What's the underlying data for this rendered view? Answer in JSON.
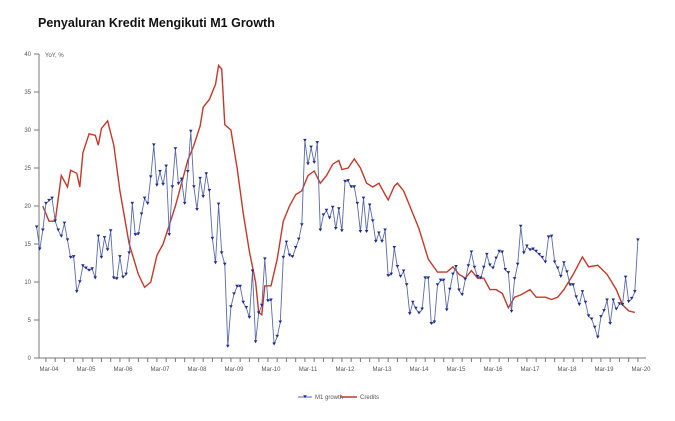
{
  "chart_data": {
    "type": "line",
    "title": "Penyaluran Kredit Mengikuti M1 Growth",
    "ylabel": "YoY, %",
    "xlabel": "",
    "ylim": [
      0,
      40
    ],
    "yticks": [
      0,
      5,
      10,
      15,
      20,
      25,
      30,
      35,
      40
    ],
    "xticks": [
      "Mar-04",
      "Mar-05",
      "Mar-06",
      "Mar-07",
      "Mar-08",
      "Mar-09",
      "Mar-10",
      "Mar-11",
      "Mar-12",
      "Mar-13",
      "Mar-14",
      "Mar-15",
      "Mar-16",
      "Mar-17",
      "Mar-18",
      "Mar-19",
      "Mar-20"
    ],
    "grid": false,
    "legend": "bottom",
    "series": [
      {
        "name": "M1 growth",
        "color": "#1f2a8c",
        "marker": "triangle-down",
        "x": [
          "2003-11",
          "2003-12",
          "2004-01",
          "2004-02",
          "2004-03",
          "2004-04",
          "2004-05",
          "2004-06",
          "2004-07",
          "2004-08",
          "2004-09",
          "2004-10",
          "2004-11",
          "2004-12",
          "2005-01",
          "2005-02",
          "2005-03",
          "2005-04",
          "2005-05",
          "2005-06",
          "2005-07",
          "2005-08",
          "2005-09",
          "2005-10",
          "2005-11",
          "2005-12",
          "2006-01",
          "2006-02",
          "2006-03",
          "2006-04",
          "2006-05",
          "2006-06",
          "2006-07",
          "2006-08",
          "2006-09",
          "2006-10",
          "2006-11",
          "2006-12",
          "2007-01",
          "2007-02",
          "2007-03",
          "2007-04",
          "2007-05",
          "2007-06",
          "2007-07",
          "2007-08",
          "2007-09",
          "2007-10",
          "2007-11",
          "2007-12",
          "2008-01",
          "2008-02",
          "2008-03",
          "2008-04",
          "2008-05",
          "2008-06",
          "2008-07",
          "2008-08",
          "2008-09",
          "2008-10",
          "2008-11",
          "2008-12",
          "2009-01",
          "2009-02",
          "2009-03",
          "2009-04",
          "2009-05",
          "2009-06",
          "2009-07",
          "2009-08",
          "2009-09",
          "2009-10",
          "2009-11",
          "2009-12",
          "2010-01",
          "2010-02",
          "2010-03",
          "2010-04",
          "2010-05",
          "2010-06",
          "2010-07",
          "2010-08",
          "2010-09",
          "2010-10",
          "2010-11",
          "2010-12",
          "2011-01",
          "2011-02",
          "2011-03",
          "2011-04",
          "2011-05",
          "2011-06",
          "2011-07",
          "2011-08",
          "2011-09",
          "2011-10",
          "2011-11",
          "2011-12",
          "2012-01",
          "2012-02",
          "2012-03",
          "2012-04",
          "2012-05",
          "2012-06",
          "2012-07",
          "2012-08",
          "2012-09",
          "2012-10",
          "2012-11",
          "2012-12",
          "2013-01",
          "2013-02",
          "2013-03",
          "2013-04",
          "2013-05",
          "2013-06",
          "2013-07",
          "2013-08",
          "2013-09",
          "2013-10",
          "2013-11",
          "2013-12",
          "2014-01",
          "2014-02",
          "2014-03",
          "2014-04",
          "2014-05",
          "2014-06",
          "2014-07",
          "2014-08",
          "2014-09",
          "2014-10",
          "2014-11",
          "2014-12",
          "2015-01",
          "2015-02",
          "2015-03",
          "2015-04",
          "2015-05",
          "2015-06",
          "2015-07",
          "2015-08",
          "2015-09",
          "2015-10",
          "2015-11",
          "2015-12",
          "2016-01",
          "2016-02",
          "2016-03",
          "2016-04",
          "2016-05",
          "2016-06",
          "2016-07",
          "2016-08",
          "2016-09",
          "2016-10",
          "2016-11",
          "2016-12",
          "2017-01",
          "2017-02",
          "2017-03",
          "2017-04",
          "2017-05",
          "2017-06",
          "2017-07",
          "2017-08",
          "2017-09",
          "2017-10",
          "2017-11",
          "2017-12",
          "2018-01",
          "2018-02",
          "2018-03",
          "2018-04",
          "2018-05",
          "2018-06",
          "2018-07",
          "2018-08",
          "2018-09",
          "2018-10",
          "2018-11",
          "2018-12",
          "2019-01",
          "2019-02",
          "2019-03",
          "2019-04",
          "2019-05",
          "2019-06",
          "2019-07",
          "2019-08",
          "2019-09",
          "2019-10",
          "2019-11",
          "2019-12",
          "2020-01",
          "2020-02"
        ],
        "values": [
          17.2,
          14.3,
          16.8,
          20.3,
          20.7,
          21,
          18,
          16.8,
          16,
          17.7,
          15.5,
          13.2,
          13.3,
          8.7,
          10,
          12.1,
          11.8,
          11.5,
          11.7,
          10.5,
          16,
          13.2,
          15.8,
          14.2,
          16.7,
          10.5,
          10.4,
          13.3,
          10.6,
          11,
          13.8,
          20.3,
          16.2,
          16.3,
          18.9,
          21,
          20.3,
          23.8,
          28,
          22.7,
          24.5,
          22.8,
          25.2,
          16.2,
          22.5,
          27.5,
          22.9,
          23.5,
          20.3,
          24.5,
          29.8,
          22.5,
          19.5,
          23.6,
          21.2,
          24.2,
          22,
          15.7,
          12.5,
          20.2,
          13.8,
          12.3,
          1.5,
          6.7,
          8.4,
          9.4,
          9.4,
          7.3,
          6.6,
          5.3,
          11.4,
          2.1,
          5.9,
          6.9,
          13,
          7.5,
          7.6,
          1.8,
          2.8,
          4.7,
          13.2,
          15.2,
          13.5,
          13.3,
          14.5,
          15.6,
          17.5,
          28.6,
          25.5,
          27.7,
          25.7,
          28.3,
          16.8,
          18.8,
          19.4,
          18.4,
          19.8,
          17,
          19.6,
          16.7,
          23.2,
          23.3,
          22.5,
          22.5,
          20.3,
          16.6,
          21,
          16.6,
          20.1,
          18,
          15.3,
          16.4,
          15.3,
          16.8,
          10.8,
          11,
          14.5,
          12,
          10.7,
          11.4,
          9.6,
          5.8,
          7.3,
          6.5,
          5.9,
          6.4,
          10.5,
          10.5,
          4.5,
          4.7,
          9.6,
          10.2,
          10.2,
          6.3,
          9,
          11,
          12,
          8.9,
          8.3,
          10.3,
          12.1,
          13.9,
          11.9,
          10.7,
          10.5,
          11.9,
          13.6,
          12.2,
          11.8,
          13.1,
          14,
          13.9,
          11.6,
          11.2,
          6.1,
          10.4,
          12.3,
          17.3,
          13.8,
          14.7,
          14.2,
          14.3,
          14,
          13.6,
          13.2,
          12.6,
          15.9,
          16,
          12.6,
          11.8,
          10.7,
          12.5,
          11.3,
          9.6,
          9.6,
          8,
          7,
          8.7,
          7.3,
          5.5,
          5.1,
          4,
          2.7,
          5.4,
          6.2,
          7.6,
          4.5,
          7.6,
          6.4,
          7.1,
          7,
          10.6,
          7.4,
          7.8,
          8.7,
          15.5
        ]
      },
      {
        "name": "Credits",
        "color": "#c0392b",
        "x": [
          "2004-01",
          "2004-03",
          "2004-05",
          "2004-07",
          "2004-09",
          "2004-10",
          "2004-12",
          "2005-01",
          "2005-02",
          "2005-04",
          "2005-06",
          "2005-07",
          "2005-08",
          "2005-10",
          "2005-12",
          "2006-02",
          "2006-05",
          "2006-08",
          "2006-10",
          "2006-12",
          "2007-02",
          "2007-04",
          "2007-06",
          "2007-08",
          "2007-10",
          "2007-12",
          "2008-02",
          "2008-04",
          "2008-05",
          "2008-07",
          "2008-09",
          "2008-10",
          "2008-11",
          "2008-12",
          "2009-02",
          "2009-04",
          "2009-06",
          "2009-08",
          "2009-10",
          "2009-11",
          "2009-12",
          "2010-01",
          "2010-03",
          "2010-05",
          "2010-07",
          "2010-09",
          "2010-11",
          "2011-01",
          "2011-03",
          "2011-05",
          "2011-07",
          "2011-09",
          "2011-11",
          "2012-01",
          "2012-02",
          "2012-04",
          "2012-06",
          "2012-08",
          "2012-10",
          "2012-12",
          "2013-02",
          "2013-04",
          "2013-05",
          "2013-07",
          "2013-08",
          "2013-10",
          "2013-12",
          "2014-03",
          "2014-06",
          "2014-09",
          "2014-12",
          "2015-02",
          "2015-04",
          "2015-06",
          "2015-08",
          "2015-10",
          "2015-12",
          "2016-02",
          "2016-04",
          "2016-06",
          "2016-08",
          "2016-10",
          "2016-12",
          "2017-03",
          "2017-05",
          "2017-08",
          "2017-10",
          "2017-12",
          "2018-02",
          "2018-05",
          "2018-08",
          "2018-10",
          "2019-01",
          "2019-04",
          "2019-07",
          "2019-09",
          "2019-11",
          "2020-01"
        ],
        "values": [
          20,
          18,
          18,
          24,
          22.5,
          24.7,
          24.3,
          22.5,
          27,
          29.5,
          29.3,
          28,
          30.2,
          31.2,
          28,
          22,
          15,
          11,
          9.3,
          10,
          13.5,
          15,
          17.5,
          20,
          23,
          26,
          28,
          30.5,
          33,
          34,
          36,
          38.5,
          38,
          30.7,
          30,
          25,
          19,
          14,
          10,
          6,
          5.7,
          9.5,
          9.5,
          13,
          18,
          20,
          21.5,
          22,
          24,
          24.6,
          23,
          24,
          25.5,
          26,
          24.8,
          25,
          26.2,
          25,
          23,
          22.5,
          23,
          21.5,
          20.8,
          22.6,
          23,
          22,
          20,
          17,
          13,
          11.3,
          11.3,
          12,
          11,
          10.5,
          11.5,
          10.5,
          10.5,
          9,
          9,
          8.5,
          6.6,
          8,
          8.3,
          9,
          8,
          8,
          7.7,
          8,
          9,
          11,
          13.3,
          12,
          12.2,
          11,
          9,
          7,
          6.2,
          6
        ]
      }
    ]
  }
}
